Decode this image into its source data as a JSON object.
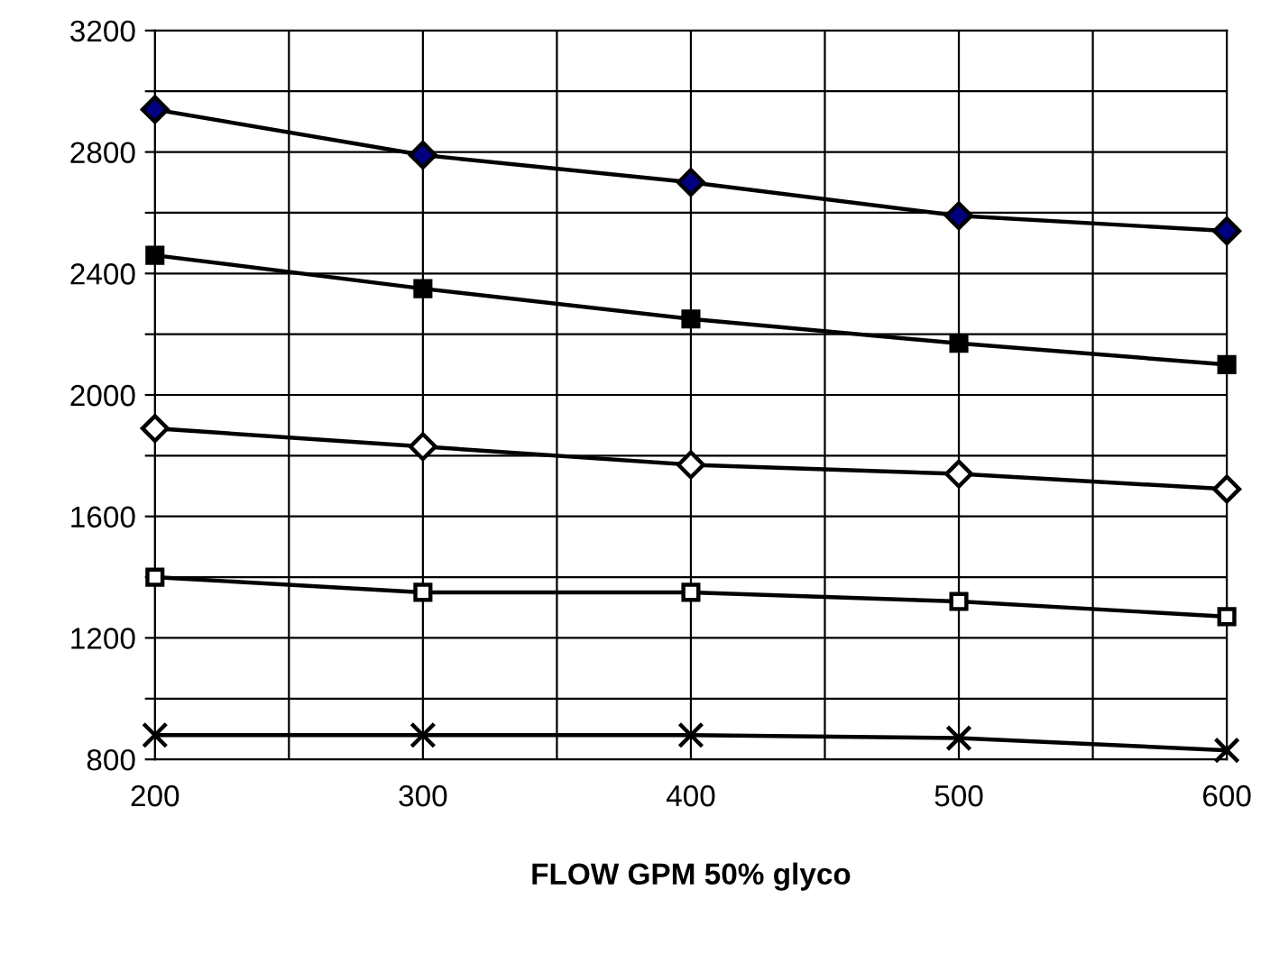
{
  "chart_data": {
    "type": "line",
    "xlabel": "FLOW GPM 50% glyco",
    "x": [
      200,
      300,
      400,
      500,
      600
    ],
    "series": [
      {
        "color": "#000080",
        "marker": "diamond",
        "values": [
          2940,
          2790,
          2700,
          2590,
          2540
        ]
      },
      {
        "color": "#000000",
        "marker": "square",
        "values": [
          2460,
          2350,
          2250,
          2170,
          2100
        ]
      },
      {
        "color": "#ffffff",
        "marker": "diamond",
        "values": [
          1890,
          1830,
          1770,
          1740,
          1690
        ]
      },
      {
        "color": "#ffffff",
        "marker": "square",
        "values": [
          1400,
          1350,
          1350,
          1320,
          1270
        ]
      },
      {
        "color": "#000000",
        "marker": "cross",
        "values": [
          880,
          880,
          880,
          870,
          830
        ]
      }
    ],
    "xlim": [
      200,
      600
    ],
    "ylim": [
      800,
      3200
    ],
    "xticks": [
      200,
      {
        "value": 250,
        "label": null
      },
      300,
      {
        "value": 350,
        "label": null
      },
      400,
      {
        "value": 450,
        "label": null
      },
      500,
      {
        "value": 550,
        "label": null
      },
      600
    ],
    "yticks": [
      800,
      {
        "value": 1000,
        "label": null
      },
      1200,
      {
        "value": 1400,
        "label": null
      },
      1600,
      {
        "value": 1800,
        "label": null
      },
      2000,
      {
        "value": 2200,
        "label": null
      },
      2400,
      {
        "value": 2600,
        "label": null
      },
      2800,
      {
        "value": 3000,
        "label": null
      },
      3200
    ],
    "grid": true,
    "legend": false,
    "line_style": "solid"
  }
}
